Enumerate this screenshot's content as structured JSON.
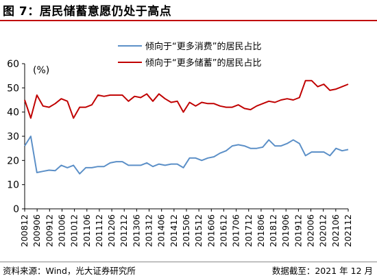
{
  "title": "图 7：居民储蓄意愿仍处于高点",
  "source": "资料来源：Wind，光大证券研究所",
  "date_note": "数据截至：2021 年 12 月",
  "chart_data": {
    "type": "line",
    "y_unit_label": "(%)",
    "ylim": [
      0,
      60
    ],
    "yticks": [
      0,
      10,
      20,
      30,
      40,
      50,
      60
    ],
    "legend_position": "top-center",
    "grid": false,
    "x_tick_labels": [
      "200812",
      "200906",
      "200912",
      "201006",
      "201012",
      "201106",
      "201112",
      "201206",
      "201212",
      "201306",
      "201312",
      "201406",
      "201412",
      "201506",
      "201512",
      "201606",
      "201612",
      "201706",
      "201712",
      "201806",
      "201812",
      "201906",
      "201912",
      "202006",
      "202012",
      "202106",
      "202112"
    ],
    "series": [
      {
        "name": "倾向于“更多消费”的居民占比",
        "color": "#5b8fc7",
        "values": [
          26,
          30,
          15,
          15.5,
          16,
          15.8,
          18,
          17,
          18,
          14.5,
          17,
          17,
          17.5,
          17.5,
          19,
          19.5,
          19.5,
          18,
          18,
          18,
          19,
          17.5,
          18.5,
          18,
          18.5,
          18.5,
          17,
          21,
          21,
          20,
          21,
          21.5,
          23,
          24,
          26,
          26.5,
          26,
          25,
          25,
          25.5,
          28.5,
          26,
          26,
          27,
          28.5,
          27,
          22,
          23.5,
          23.5,
          23.5,
          22,
          25,
          24,
          24.5
        ]
      },
      {
        "name": "倾向于“更多储蓄”的居民占比",
        "color": "#c00000",
        "values": [
          45,
          37.5,
          47,
          42.5,
          42,
          43.5,
          45.5,
          44.5,
          37.5,
          42,
          42,
          43,
          47,
          46.5,
          47,
          47,
          47,
          44.5,
          46.5,
          46,
          47.5,
          44.5,
          47.5,
          45.5,
          44,
          44.5,
          40,
          44,
          42.5,
          44,
          43.5,
          43.5,
          42.5,
          42,
          42,
          43,
          41.5,
          41,
          42.5,
          43.5,
          44.5,
          44,
          45,
          45.5,
          45,
          46,
          53,
          53,
          50.5,
          51.5,
          49,
          49.5,
          50.5,
          51.5
        ]
      }
    ]
  }
}
